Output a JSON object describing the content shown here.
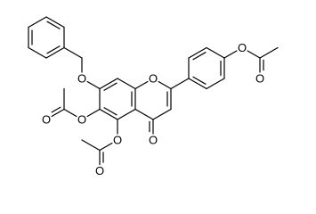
{
  "molecule": {
    "atoms": [
      {
        "label": "O"
      },
      {
        "label": "O"
      },
      {
        "label": "O"
      },
      {
        "label": "O"
      },
      {
        "label": "O"
      },
      {
        "label": "O"
      },
      {
        "label": "O"
      },
      {
        "label": "O"
      },
      {
        "label": "O"
      }
    ]
  }
}
